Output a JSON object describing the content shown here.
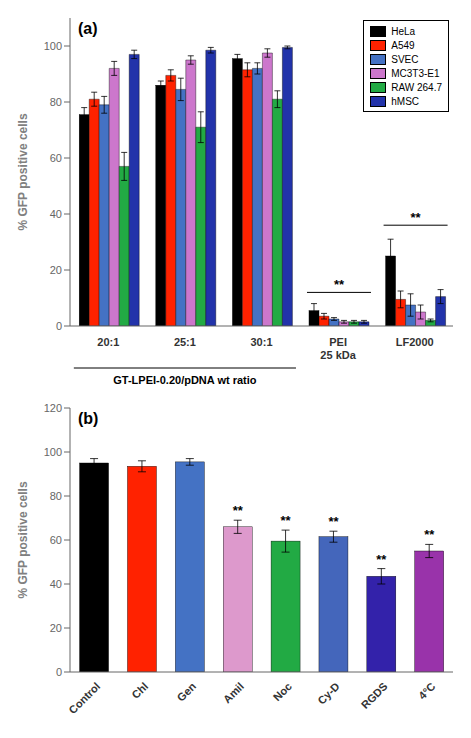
{
  "chart_data": [
    {
      "type": "bar",
      "title": "(a)",
      "categories": [
        "20:1",
        "25:1",
        "30:1",
        "PEI\n25 kDa",
        "LF2000"
      ],
      "series": [
        {
          "name": "HeLa",
          "color": "#000000",
          "values": [
            75.5,
            86.0,
            95.5,
            5.5,
            25.0
          ],
          "errors": [
            2.5,
            1.5,
            1.5,
            2.5,
            6.0
          ]
        },
        {
          "name": "A549",
          "color": "#ff2200",
          "values": [
            81.0,
            89.5,
            91.5,
            3.5,
            9.5
          ],
          "errors": [
            2.5,
            2.0,
            2.5,
            1.0,
            3.0
          ]
        },
        {
          "name": "SVEC",
          "color": "#4472c4",
          "values": [
            79.0,
            84.5,
            92.0,
            2.5,
            7.5
          ],
          "errors": [
            3.0,
            4.0,
            2.0,
            0.5,
            4.0
          ]
        },
        {
          "name": "MC3T3-E1",
          "color": "#cc77cc",
          "values": [
            92.0,
            95.0,
            97.5,
            1.5,
            5.0
          ],
          "errors": [
            2.5,
            1.5,
            1.5,
            0.5,
            2.5
          ]
        },
        {
          "name": "RAW 264.7",
          "color": "#22aa44",
          "values": [
            57.0,
            71.0,
            81.0,
            1.5,
            2.0
          ],
          "errors": [
            5.0,
            5.5,
            3.0,
            0.5,
            0.5
          ]
        },
        {
          "name": "hMSC",
          "color": "#2233aa",
          "values": [
            97.0,
            98.5,
            99.5,
            1.5,
            10.5
          ],
          "errors": [
            1.5,
            1.0,
            0.5,
            0.5,
            2.5
          ]
        }
      ],
      "ylabel": "% GFP positive cells",
      "ylim": [
        0,
        110
      ],
      "yticks": [
        0,
        20,
        40,
        60,
        80,
        100
      ],
      "grid": false,
      "legend": "upper right",
      "annotations": [
        {
          "text": "**",
          "category": "PEI\n25 kDa",
          "y": 12
        },
        {
          "text": "**",
          "category": "LF2000",
          "y": 36
        },
        {
          "text": "GT-LPEI-0.20/pDNA wt ratio",
          "categories": [
            "20:1",
            "25:1",
            "30:1"
          ]
        }
      ]
    },
    {
      "type": "bar",
      "title": "(b)",
      "categories": [
        "Control",
        "Chl",
        "Gen",
        "Amil",
        "Noc",
        "Cy-D",
        "RGDS",
        "4°C"
      ],
      "values": [
        95.0,
        93.5,
        95.5,
        66.0,
        59.5,
        61.5,
        43.5,
        55.0
      ],
      "errors": [
        2.0,
        2.5,
        1.5,
        3.0,
        5.0,
        2.5,
        3.5,
        3.0
      ],
      "colors": [
        "#000000",
        "#ff2200",
        "#4472c4",
        "#dd99cc",
        "#22aa44",
        "#4466bb",
        "#3322aa",
        "#9933aa"
      ],
      "ylabel": "% GFP positive cells",
      "ylim": [
        0,
        120
      ],
      "yticks": [
        0,
        20,
        40,
        60,
        80,
        100,
        120
      ],
      "grid": false,
      "annotations": [
        {
          "text": "**",
          "category": "Amil"
        },
        {
          "text": "**",
          "category": "Noc"
        },
        {
          "text": "**",
          "category": "Cy-D"
        },
        {
          "text": "**",
          "category": "RGDS"
        },
        {
          "text": "**",
          "category": "4°C"
        }
      ]
    }
  ]
}
